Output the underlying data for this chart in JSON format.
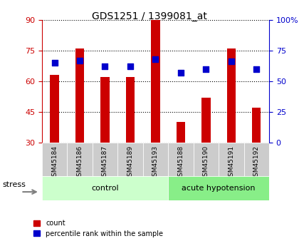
{
  "title": "GDS1251 / 1399081_at",
  "samples": [
    "GSM45184",
    "GSM45186",
    "GSM45187",
    "GSM45189",
    "GSM45193",
    "GSM45188",
    "GSM45190",
    "GSM45191",
    "GSM45192"
  ],
  "count_values": [
    63,
    76,
    62,
    62,
    90,
    40,
    52,
    76,
    47
  ],
  "percentile_values": [
    65,
    67,
    62,
    62,
    68,
    57,
    60,
    66,
    60
  ],
  "ylim_left": [
    30,
    90
  ],
  "ylim_right": [
    0,
    100
  ],
  "yticks_left": [
    30,
    45,
    60,
    75,
    90
  ],
  "yticks_right": [
    0,
    25,
    50,
    75,
    100
  ],
  "bar_color": "#cc0000",
  "dot_color": "#0000cc",
  "control_color": "#ccffcc",
  "hypotension_color": "#88ee88",
  "label_bg_color": "#cccccc",
  "left_axis_color": "#cc0000",
  "right_axis_color": "#0000cc",
  "bar_width": 0.35,
  "legend_count": "count",
  "legend_pct": "percentile rank within the sample",
  "stress_label": "stress"
}
